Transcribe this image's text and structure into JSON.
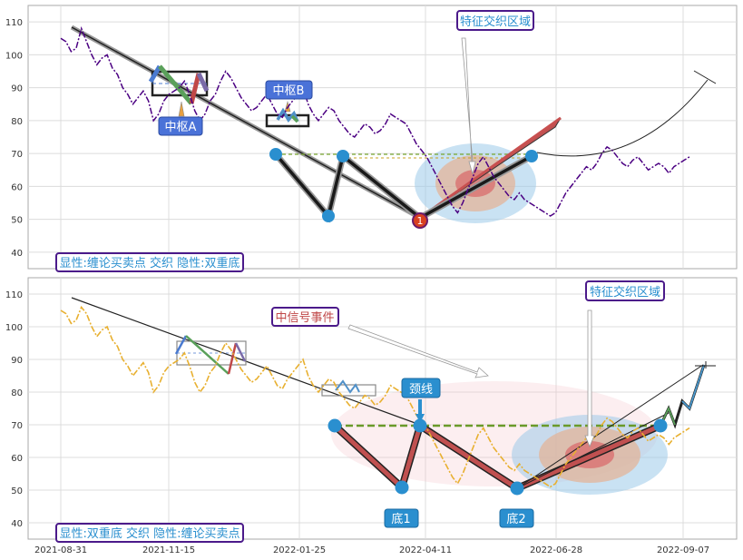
{
  "chart_data": [
    {
      "type": "line",
      "ylim": [
        35,
        115
      ],
      "yticks": [
        40,
        50,
        60,
        70,
        80,
        90,
        100,
        110
      ],
      "series": [
        {
          "color": "#4b0082",
          "style": "dash-dot",
          "values": [
            [
              0,
              105
            ],
            [
              1,
              104
            ],
            [
              2,
              101
            ],
            [
              3,
              102
            ],
            [
              4,
              108
            ],
            [
              5,
              104
            ],
            [
              6,
              100
            ],
            [
              7,
              97
            ],
            [
              8,
              99
            ],
            [
              9,
              100
            ],
            [
              10,
              96
            ],
            [
              11,
              94
            ],
            [
              12,
              90
            ],
            [
              13,
              88
            ],
            [
              14,
              85
            ],
            [
              15,
              87
            ],
            [
              16,
              89
            ],
            [
              17,
              86
            ],
            [
              18,
              80
            ],
            [
              19,
              82
            ],
            [
              20,
              86
            ],
            [
              21,
              88
            ],
            [
              22,
              89
            ],
            [
              23,
              90
            ],
            [
              24,
              92
            ],
            [
              25,
              88
            ],
            [
              26,
              83
            ],
            [
              27,
              80
            ],
            [
              28,
              82
            ],
            [
              29,
              86
            ],
            [
              30,
              88
            ],
            [
              31,
              92
            ],
            [
              32,
              95
            ],
            [
              33,
              93
            ],
            [
              34,
              90
            ],
            [
              35,
              87
            ],
            [
              36,
              85
            ],
            [
              37,
              83
            ],
            [
              38,
              84
            ],
            [
              39,
              86
            ],
            [
              40,
              88
            ],
            [
              41,
              85
            ],
            [
              42,
              82
            ],
            [
              43,
              81
            ],
            [
              44,
              84
            ],
            [
              45,
              86
            ],
            [
              46,
              88
            ],
            [
              47,
              90
            ],
            [
              48,
              85
            ],
            [
              49,
              82
            ],
            [
              50,
              80
            ],
            [
              51,
              82
            ],
            [
              52,
              84
            ],
            [
              53,
              83
            ],
            [
              54,
              80
            ],
            [
              55,
              78
            ],
            [
              56,
              76
            ],
            [
              57,
              75
            ],
            [
              58,
              77
            ],
            [
              59,
              79
            ],
            [
              60,
              78
            ],
            [
              61,
              76
            ],
            [
              62,
              77
            ],
            [
              63,
              79
            ],
            [
              64,
              82
            ],
            [
              65,
              81
            ],
            [
              66,
              80
            ],
            [
              67,
              79
            ],
            [
              68,
              76
            ],
            [
              69,
              73
            ],
            [
              70,
              71
            ],
            [
              71,
              69
            ],
            [
              72,
              66
            ],
            [
              73,
              63
            ],
            [
              74,
              60
            ],
            [
              75,
              57
            ],
            [
              76,
              54
            ],
            [
              77,
              52
            ],
            [
              78,
              55
            ],
            [
              79,
              59
            ],
            [
              80,
              63
            ],
            [
              81,
              67
            ],
            [
              82,
              69
            ],
            [
              83,
              66
            ],
            [
              84,
              63
            ],
            [
              85,
              61
            ],
            [
              86,
              59
            ],
            [
              87,
              57
            ],
            [
              88,
              56
            ],
            [
              89,
              58
            ],
            [
              90,
              56
            ],
            [
              91,
              55
            ],
            [
              92,
              54
            ],
            [
              93,
              53
            ],
            [
              94,
              52
            ],
            [
              95,
              51
            ],
            [
              96,
              52
            ],
            [
              97,
              55
            ],
            [
              98,
              58
            ],
            [
              99,
              60
            ],
            [
              100,
              62
            ],
            [
              101,
              64
            ],
            [
              102,
              66
            ],
            [
              103,
              65
            ],
            [
              104,
              67
            ],
            [
              105,
              70
            ],
            [
              106,
              72
            ],
            [
              107,
              71
            ],
            [
              108,
              69
            ],
            [
              109,
              67
            ],
            [
              110,
              66
            ],
            [
              111,
              68
            ],
            [
              112,
              69
            ],
            [
              113,
              67
            ],
            [
              114,
              65
            ],
            [
              115,
              66
            ],
            [
              116,
              67
            ],
            [
              117,
              66
            ],
            [
              118,
              64
            ],
            [
              119,
              66
            ],
            [
              120,
              67
            ],
            [
              121,
              68
            ],
            [
              122,
              69
            ]
          ]
        }
      ],
      "annotations": [
        {
          "text": "中枢A"
        },
        {
          "text": "中枢B"
        },
        {
          "text": "特征交织区域"
        },
        {
          "text": "显性:缠论买卖点 交织 隐性:双重底"
        },
        {
          "text": "1"
        }
      ]
    },
    {
      "type": "line",
      "ylim": [
        35,
        115
      ],
      "yticks": [
        40,
        50,
        60,
        70,
        80,
        90,
        100,
        110
      ],
      "xlim": [
        "2021-08-31",
        "2022-09-19"
      ],
      "xticks": [
        "2021-08-31",
        "2021-11-15",
        "2022-01-25",
        "2022-04-11",
        "2022-06-28",
        "2022-09-07"
      ],
      "series": [
        {
          "color": "#e8b030",
          "style": "dash-dot",
          "values": [
            [
              0,
              105
            ],
            [
              1,
              104
            ],
            [
              2,
              101
            ],
            [
              3,
              102
            ],
            [
              4,
              106
            ],
            [
              5,
              104
            ],
            [
              6,
              100
            ],
            [
              7,
              97
            ],
            [
              8,
              99
            ],
            [
              9,
              100
            ],
            [
              10,
              96
            ],
            [
              11,
              94
            ],
            [
              12,
              90
            ],
            [
              13,
              88
            ],
            [
              14,
              85
            ],
            [
              15,
              87
            ],
            [
              16,
              89
            ],
            [
              17,
              86
            ],
            [
              18,
              80
            ],
            [
              19,
              82
            ],
            [
              20,
              86
            ],
            [
              21,
              88
            ],
            [
              22,
              89
            ],
            [
              23,
              90
            ],
            [
              24,
              92
            ],
            [
              25,
              88
            ],
            [
              26,
              83
            ],
            [
              27,
              80
            ],
            [
              28,
              82
            ],
            [
              29,
              86
            ],
            [
              30,
              88
            ],
            [
              31,
              92
            ],
            [
              32,
              95
            ],
            [
              33,
              93
            ],
            [
              34,
              90
            ],
            [
              35,
              87
            ],
            [
              36,
              85
            ],
            [
              37,
              83
            ],
            [
              38,
              84
            ],
            [
              39,
              86
            ],
            [
              40,
              88
            ],
            [
              41,
              85
            ],
            [
              42,
              82
            ],
            [
              43,
              81
            ],
            [
              44,
              84
            ],
            [
              45,
              86
            ],
            [
              46,
              88
            ],
            [
              47,
              90
            ],
            [
              48,
              85
            ],
            [
              49,
              82
            ],
            [
              50,
              80
            ],
            [
              51,
              82
            ],
            [
              52,
              84
            ],
            [
              53,
              83
            ],
            [
              54,
              80
            ],
            [
              55,
              78
            ],
            [
              56,
              76
            ],
            [
              57,
              75
            ],
            [
              58,
              77
            ],
            [
              59,
              79
            ],
            [
              60,
              78
            ],
            [
              61,
              76
            ],
            [
              62,
              77
            ],
            [
              63,
              79
            ],
            [
              64,
              82
            ],
            [
              65,
              81
            ],
            [
              66,
              80
            ],
            [
              67,
              79
            ],
            [
              68,
              76
            ],
            [
              69,
              73
            ],
            [
              70,
              71
            ],
            [
              71,
              69
            ],
            [
              72,
              66
            ],
            [
              73,
              63
            ],
            [
              74,
              60
            ],
            [
              75,
              57
            ],
            [
              76,
              54
            ],
            [
              77,
              52
            ],
            [
              78,
              55
            ],
            [
              79,
              59
            ],
            [
              80,
              63
            ],
            [
              81,
              67
            ],
            [
              82,
              69
            ],
            [
              83,
              66
            ],
            [
              84,
              63
            ],
            [
              85,
              61
            ],
            [
              86,
              59
            ],
            [
              87,
              57
            ],
            [
              88,
              56
            ],
            [
              89,
              58
            ],
            [
              90,
              56
            ],
            [
              91,
              55
            ],
            [
              92,
              54
            ],
            [
              93,
              53
            ],
            [
              94,
              52
            ],
            [
              95,
              51
            ],
            [
              96,
              52
            ],
            [
              97,
              55
            ],
            [
              98,
              58
            ],
            [
              99,
              60
            ],
            [
              100,
              62
            ],
            [
              101,
              64
            ],
            [
              102,
              66
            ],
            [
              103,
              65
            ],
            [
              104,
              67
            ],
            [
              105,
              70
            ],
            [
              106,
              72
            ],
            [
              107,
              71
            ],
            [
              108,
              69
            ],
            [
              109,
              67
            ],
            [
              110,
              66
            ],
            [
              111,
              68
            ],
            [
              112,
              69
            ],
            [
              113,
              67
            ],
            [
              114,
              65
            ],
            [
              115,
              66
            ],
            [
              116,
              67
            ],
            [
              117,
              66
            ],
            [
              118,
              64
            ],
            [
              119,
              66
            ],
            [
              120,
              67
            ],
            [
              121,
              68
            ],
            [
              122,
              69
            ]
          ]
        }
      ],
      "annotations": [
        {
          "text": "中信号事件"
        },
        {
          "text": "特征交织区域"
        },
        {
          "text": "颈线"
        },
        {
          "text": "底1"
        },
        {
          "text": "底2"
        },
        {
          "text": "显性:双重底 交织 隐性:缠论买卖点"
        }
      ]
    }
  ]
}
